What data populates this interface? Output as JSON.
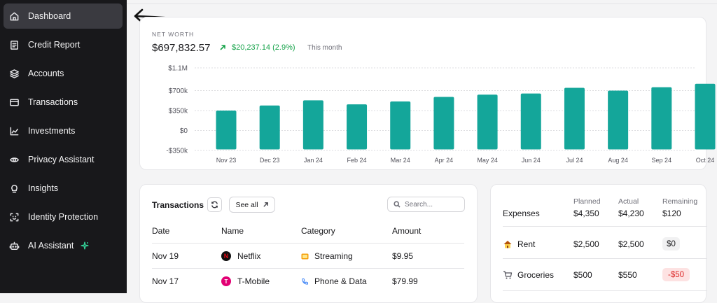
{
  "sidebar": {
    "items": [
      {
        "label": "Dashboard",
        "icon": "home-icon"
      },
      {
        "label": "Credit Report",
        "icon": "document-icon"
      },
      {
        "label": "Accounts",
        "icon": "layers-icon"
      },
      {
        "label": "Transactions",
        "icon": "credit-card-icon"
      },
      {
        "label": "Investments",
        "icon": "line-chart-icon"
      },
      {
        "label": "Privacy Assistant",
        "icon": "eye-scan-icon"
      },
      {
        "label": "Insights",
        "icon": "lightbulb-icon"
      },
      {
        "label": "Identity Protection",
        "icon": "face-scan-icon"
      },
      {
        "label": "AI Assistant",
        "icon": "robot-icon"
      }
    ]
  },
  "networth": {
    "label": "NET WORTH",
    "value": "$697,832.57",
    "change": "$20,237.14 (2.9%)",
    "period": "This month"
  },
  "chart_data": {
    "type": "bar",
    "title": "NET WORTH",
    "categories": [
      "Nov 23",
      "Dec 23",
      "Jan 24",
      "Feb 24",
      "Mar 24",
      "Apr 24",
      "May 24",
      "Jun 24",
      "Jul 24",
      "Aug 24",
      "Sep 24",
      "Oct 24"
    ],
    "values": [
      350000,
      440000,
      530000,
      460000,
      510000,
      590000,
      630000,
      650000,
      750000,
      700000,
      760000,
      820000
    ],
    "yticks": [
      -350000,
      0,
      350000,
      700000,
      1100000
    ],
    "ytick_labels": [
      "-$350k",
      "$0",
      "$350k",
      "$700k",
      "$1.1M"
    ],
    "ylim": [
      -350000,
      1100000
    ],
    "bar_color": "#14a69a",
    "grid": true
  },
  "transactions": {
    "title": "Transactions",
    "see_all": "See all",
    "search_placeholder": "Search...",
    "columns": [
      "Date",
      "Name",
      "Category",
      "Amount"
    ],
    "rows": [
      {
        "date": "Nov 19",
        "name": "Netflix",
        "logo": "N",
        "category": "Streaming",
        "amount": "$9.95"
      },
      {
        "date": "Nov 17",
        "name": "T-Mobile",
        "logo": "T",
        "category": "Phone & Data",
        "amount": "$79.99"
      }
    ]
  },
  "budget": {
    "headers": [
      "Planned",
      "Actual",
      "Remaining"
    ],
    "summary": {
      "label": "Expenses",
      "planned": "$4,350",
      "actual": "$4,230",
      "remaining": "$120"
    },
    "rows": [
      {
        "label": "Rent",
        "planned": "$2,500",
        "actual": "$2,500",
        "remaining": "$0"
      },
      {
        "label": "Groceries",
        "planned": "$500",
        "actual": "$550",
        "remaining": "-$50"
      }
    ]
  },
  "colors": {
    "accent": "#14a69a",
    "positive": "#16a34a",
    "negative": "#dc2626",
    "sidebar": "#18181b"
  }
}
